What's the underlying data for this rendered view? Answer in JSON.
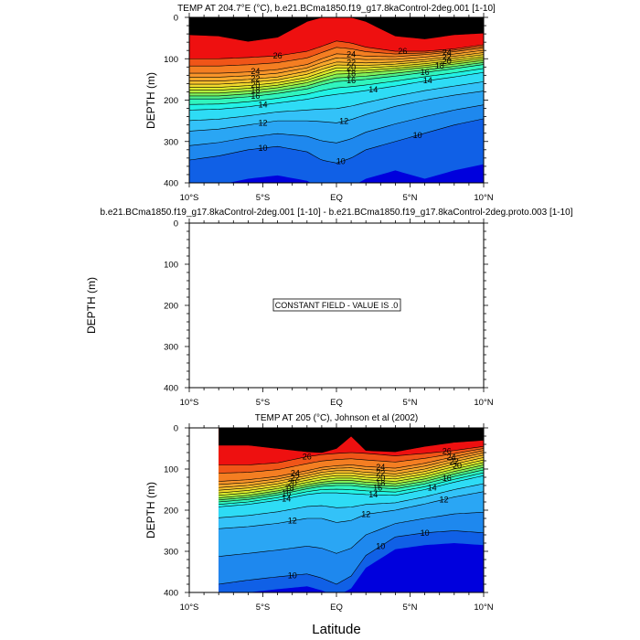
{
  "chart_data": [
    {
      "type": "contour",
      "title": "TEMP AT 204.7°E (°C), b.e21.BCma1850.f19_g17.8kaControl-2deg.001 [1-10]",
      "ylabel": "DEPTH (m)",
      "ylim": [
        0,
        400
      ],
      "yticks": [
        0,
        100,
        200,
        300,
        400
      ],
      "xlim": [
        -10,
        10
      ],
      "xtick_values": [
        -10,
        -5,
        0,
        5,
        10
      ],
      "xtick_labels": [
        "10°S",
        "5°S",
        "EQ",
        "5°N",
        "10°N"
      ],
      "contour_levels": [
        10,
        11,
        12,
        13,
        14,
        15,
        16,
        17,
        18,
        19,
        20,
        21,
        22,
        23,
        24,
        25,
        26,
        27
      ],
      "isotherm_depths": {
        "lat": [
          -10,
          -8,
          -6,
          -4,
          -2,
          -1,
          0,
          1,
          2,
          4,
          6,
          8,
          10
        ],
        "levels": {
          "27": [
            42,
            45,
            58,
            48,
            10,
            0,
            0,
            0,
            10,
            45,
            52,
            42,
            38
          ],
          "26": [
            100,
            100,
            97,
            93,
            82,
            70,
            57,
            62,
            72,
            82,
            82,
            76,
            66
          ],
          "24": [
            135,
            135,
            132,
            126,
            114,
            100,
            88,
            90,
            94,
            95,
            90,
            83,
            74
          ],
          "22": [
            154,
            154,
            150,
            144,
            130,
            118,
            108,
            109,
            110,
            108,
            102,
            94,
            85
          ],
          "20": [
            169,
            169,
            165,
            158,
            145,
            133,
            122,
            122,
            122,
            118,
            112,
            104,
            95
          ],
          "18": [
            183,
            183,
            178,
            170,
            158,
            147,
            137,
            136,
            134,
            128,
            121,
            113,
            104
          ],
          "16": [
            197,
            197,
            192,
            184,
            173,
            163,
            155,
            153,
            150,
            142,
            133,
            124,
            114
          ],
          "14": [
            224,
            222,
            216,
            207,
            198,
            191,
            186,
            182,
            177,
            166,
            154,
            144,
            133
          ],
          "12": [
            275,
            270,
            260,
            250,
            250,
            252,
            255,
            247,
            235,
            215,
            200,
            188,
            178
          ],
          "10": [
            345,
            335,
            320,
            312,
            325,
            345,
            352,
            340,
            320,
            300,
            280,
            260,
            245
          ]
        }
      },
      "contour_labels": [
        "26",
        "24",
        "22",
        "20",
        "18",
        "16",
        "14",
        "12",
        "10"
      ]
    },
    {
      "type": "contour",
      "title": "b.e21.BCma1850.f19_g17.8kaControl-2deg.001 [1-10] - b.e21.BCma1850.f19_g17.8kaControl-2deg.proto.003 [1-10]",
      "ylabel": "DEPTH (m)",
      "ylim": [
        0,
        400
      ],
      "yticks": [
        0,
        100,
        200,
        300,
        400
      ],
      "xlim": [
        -10,
        10
      ],
      "xtick_values": [
        -10,
        -5,
        0,
        5,
        10
      ],
      "xtick_labels": [
        "10°S",
        "5°S",
        "EQ",
        "5°N",
        "10°N"
      ],
      "annotation": "CONSTANT FIELD - VALUE IS .0",
      "constant_value": 0
    },
    {
      "type": "contour",
      "title": "TEMP AT 205 (°C), Johnson et al (2002)",
      "ylabel": "DEPTH (m)",
      "xlabel": "Latitude",
      "ylim": [
        0,
        400
      ],
      "yticks": [
        0,
        100,
        200,
        300,
        400
      ],
      "xlim": [
        -10,
        10
      ],
      "data_xlim": [
        -8,
        10
      ],
      "xtick_values": [
        -10,
        -5,
        0,
        5,
        10
      ],
      "xtick_labels": [
        "10°S",
        "5°S",
        "EQ",
        "5°N",
        "10°N"
      ],
      "contour_levels": [
        10,
        11,
        12,
        13,
        14,
        15,
        16,
        17,
        18,
        19,
        20,
        21,
        22,
        23,
        24,
        25,
        26,
        27
      ],
      "isotherm_depths": {
        "lat": [
          -8,
          -6,
          -4,
          -2,
          -1,
          0,
          1,
          2,
          4,
          6,
          8,
          10
        ],
        "levels": {
          "27": [
            42,
            42,
            50,
            58,
            60,
            50,
            20,
            55,
            58,
            45,
            35,
            30
          ],
          "26": [
            90,
            90,
            85,
            70,
            65,
            62,
            60,
            62,
            68,
            62,
            55,
            45
          ],
          "24": [
            130,
            126,
            118,
            104,
            96,
            92,
            90,
            94,
            98,
            86,
            70,
            55
          ],
          "22": [
            145,
            140,
            130,
            116,
            108,
            104,
            104,
            108,
            112,
            100,
            82,
            66
          ],
          "20": [
            158,
            152,
            142,
            127,
            120,
            116,
            116,
            120,
            124,
            112,
            94,
            78
          ],
          "18": [
            170,
            164,
            153,
            138,
            132,
            128,
            128,
            132,
            136,
            124,
            106,
            90
          ],
          "16": [
            180,
            174,
            163,
            148,
            142,
            140,
            140,
            144,
            148,
            136,
            118,
            102
          ],
          "14": [
            192,
            186,
            176,
            162,
            158,
            158,
            160,
            162,
            164,
            150,
            132,
            116
          ],
          "12": [
            245,
            240,
            232,
            220,
            220,
            230,
            225,
            210,
            200,
            185,
            168,
            155
          ],
          "10": [
            380,
            370,
            362,
            355,
            365,
            380,
            360,
            310,
            265,
            255,
            250,
            255
          ]
        }
      },
      "contour_labels": [
        "26",
        "24",
        "22",
        "20",
        "18",
        "16",
        "14",
        "12",
        "10"
      ]
    }
  ],
  "palette": {
    "c0": "#0000DD",
    "c1": "#1060E6",
    "c2": "#1E88EE",
    "c3": "#2AA6F4",
    "c4": "#33C2F8",
    "c5": "#2EDCF5",
    "c6": "#22F2E6",
    "c7": "#30F5BE",
    "c8": "#4CF08A",
    "c9": "#80F05A",
    "c10": "#B4F03C",
    "c11": "#DDEA2C",
    "c12": "#F2DA2C",
    "c13": "#F8C02C",
    "c14": "#F9A82C",
    "c15": "#F8942A",
    "c16": "#F47E22",
    "c17": "#F05518",
    "c18": "#EE1010"
  }
}
